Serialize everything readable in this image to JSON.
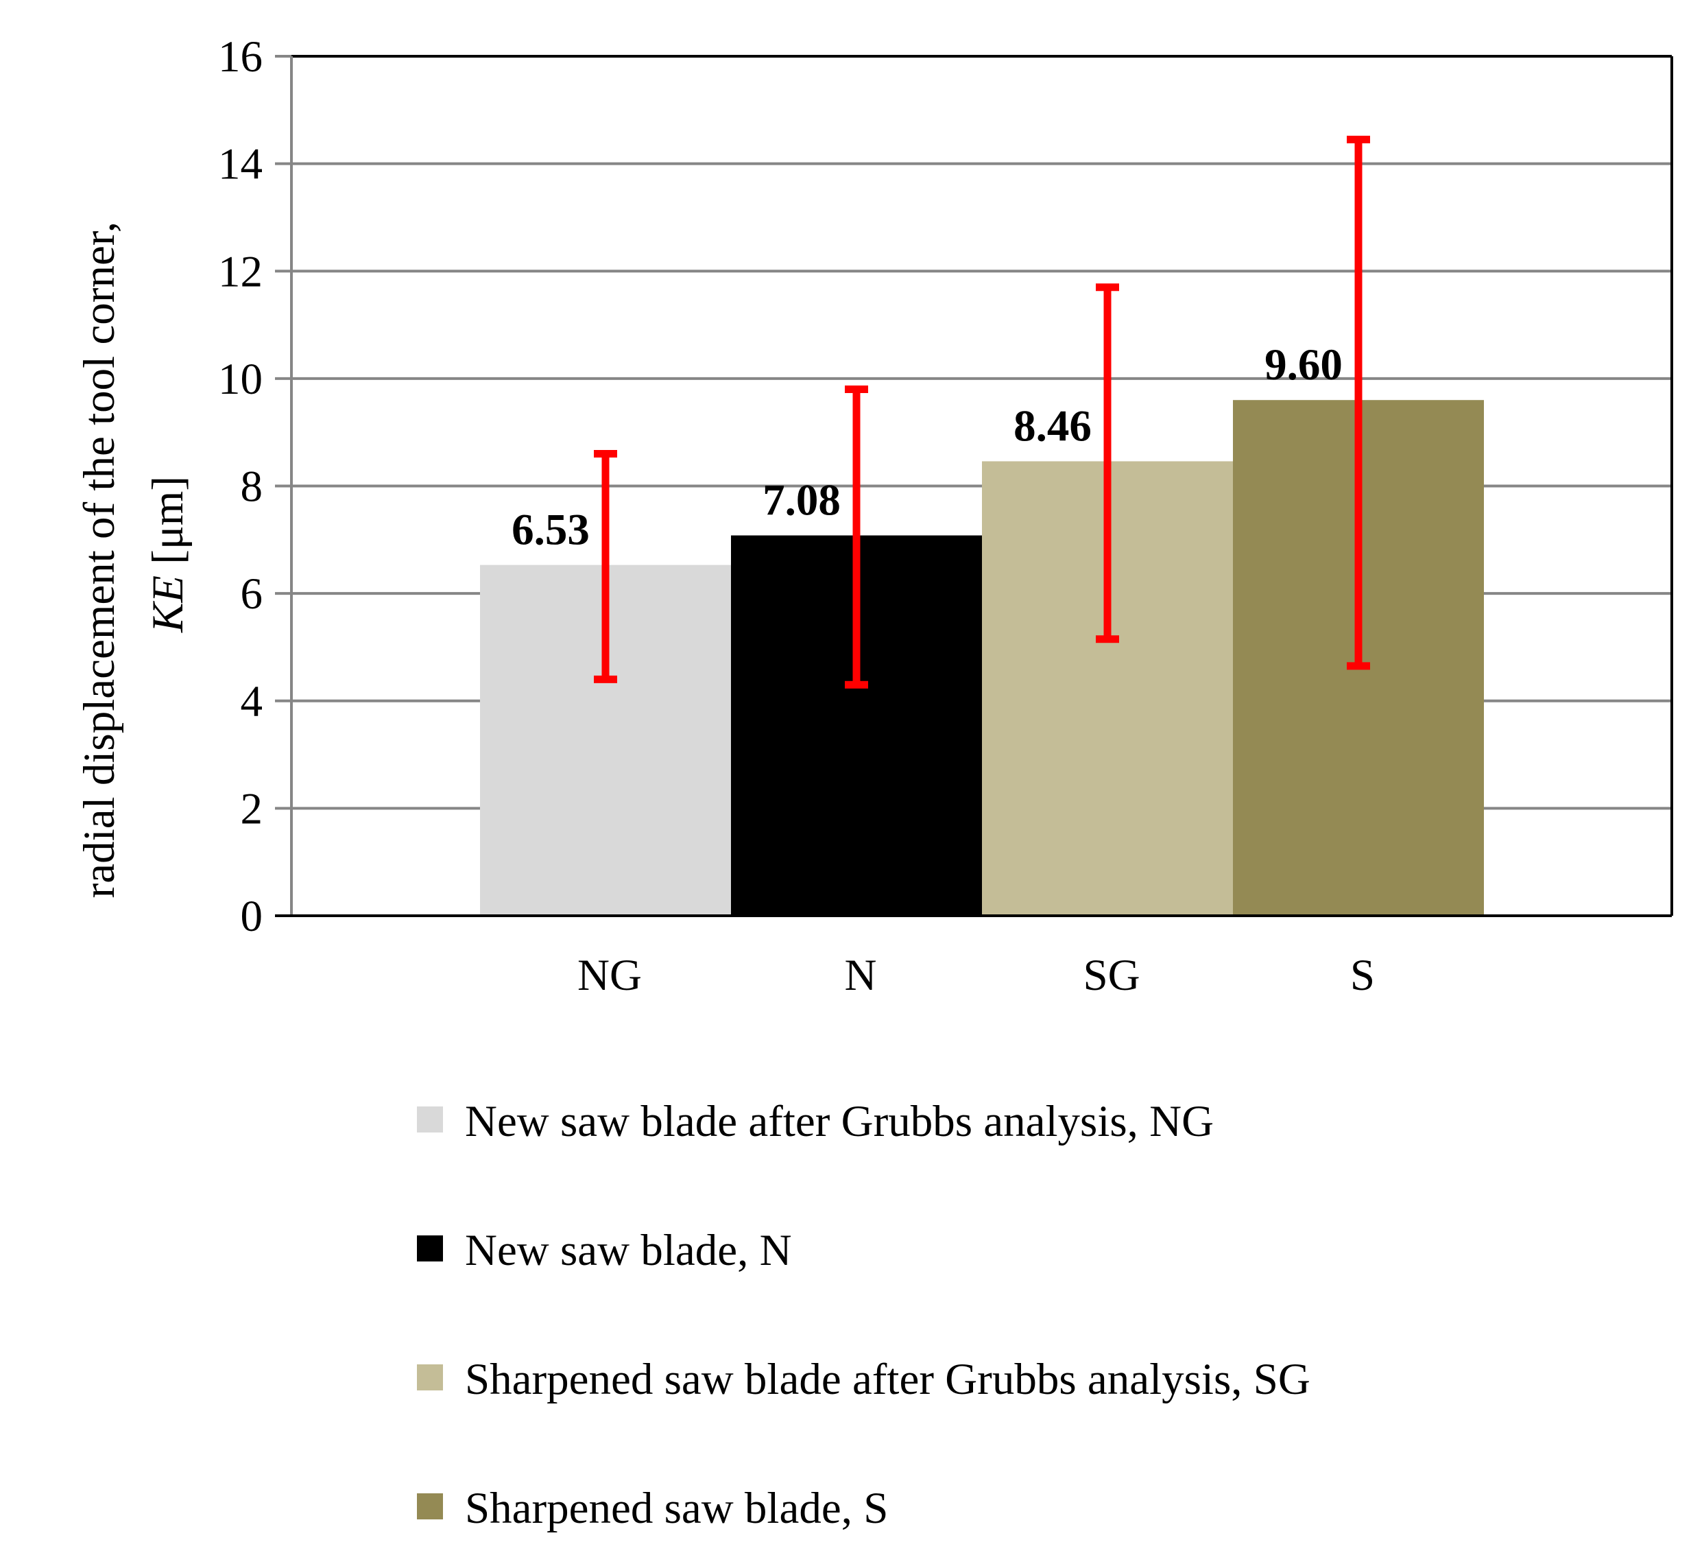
{
  "chart_data": {
    "type": "bar",
    "title": "",
    "xlabel": "",
    "ylabel_line1": "radial displacement of the tool corner,",
    "ylabel_line2_italic": "KE",
    "ylabel_line2_unit": " [μm]",
    "ylim": [
      0,
      16
    ],
    "yticks": [
      "0",
      "2",
      "4",
      "6",
      "8",
      "10",
      "12",
      "14",
      "16"
    ],
    "grid": true,
    "categories": [
      "NG",
      "N",
      "SG",
      "S"
    ],
    "values": [
      6.53,
      7.08,
      8.46,
      9.6
    ],
    "value_labels": [
      "6.53",
      "7.08",
      "8.46",
      "9.60"
    ],
    "error_bars": [
      {
        "low": 4.4,
        "high": 8.6
      },
      {
        "low": 4.3,
        "high": 9.8
      },
      {
        "low": 5.15,
        "high": 11.7
      },
      {
        "low": 4.65,
        "high": 14.45
      }
    ],
    "error_bar_color": "#ff0000",
    "legend_position": "bottom",
    "series": [
      {
        "name": "New saw blade after Grubbs analysis, NG",
        "color": "#d9d9d9"
      },
      {
        "name": "New saw blade, N",
        "color": "#000000"
      },
      {
        "name": "Sharpened saw blade after Grubbs analysis, SG",
        "color": "#c4bd97"
      },
      {
        "name": "Sharpened saw blade, S",
        "color": "#948a54"
      }
    ]
  }
}
